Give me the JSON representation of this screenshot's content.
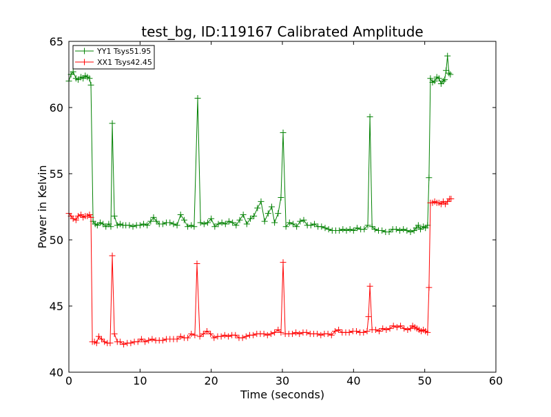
{
  "chart_data": {
    "type": "line",
    "title": "test_bg, ID:119167 Calibrated Amplitude",
    "xlabel": "Time (seconds)",
    "ylabel": "Power in Kelvin",
    "xlim": [
      0,
      60
    ],
    "ylim": [
      40,
      65
    ],
    "xticks": [
      0,
      10,
      20,
      30,
      40,
      50,
      60
    ],
    "yticks": [
      40,
      45,
      50,
      55,
      60,
      65
    ],
    "grid": false,
    "legend_position": "top-left",
    "marker": "plus",
    "series": [
      {
        "name": "YY1 Tsys51.95",
        "color": "#008000",
        "points": [
          [
            0.0,
            62.0
          ],
          [
            0.3,
            62.5
          ],
          [
            0.6,
            62.7
          ],
          [
            1.0,
            62.2
          ],
          [
            1.3,
            62.1
          ],
          [
            1.7,
            62.3
          ],
          [
            2.0,
            62.2
          ],
          [
            2.3,
            62.4
          ],
          [
            2.6,
            62.3
          ],
          [
            2.9,
            62.2
          ],
          [
            3.1,
            61.7
          ],
          [
            3.4,
            51.4
          ],
          [
            3.7,
            51.2
          ],
          [
            4.0,
            51.1
          ],
          [
            4.4,
            51.3
          ],
          [
            4.8,
            51.2
          ],
          [
            5.2,
            51.0
          ],
          [
            5.6,
            51.2
          ],
          [
            5.9,
            51.0
          ],
          [
            6.1,
            58.8
          ],
          [
            6.4,
            51.8
          ],
          [
            6.8,
            51.1
          ],
          [
            7.2,
            51.2
          ],
          [
            7.6,
            51.1
          ],
          [
            8.0,
            51.1
          ],
          [
            8.5,
            51.1
          ],
          [
            9.0,
            51.0
          ],
          [
            9.5,
            51.1
          ],
          [
            10.0,
            51.1
          ],
          [
            10.5,
            51.2
          ],
          [
            11.0,
            51.1
          ],
          [
            11.5,
            51.4
          ],
          [
            11.9,
            51.7
          ],
          [
            12.3,
            51.4
          ],
          [
            12.7,
            51.2
          ],
          [
            13.2,
            51.2
          ],
          [
            13.7,
            51.3
          ],
          [
            14.2,
            51.3
          ],
          [
            14.7,
            51.2
          ],
          [
            15.2,
            51.1
          ],
          [
            15.7,
            51.9
          ],
          [
            16.2,
            51.5
          ],
          [
            16.7,
            51.0
          ],
          [
            17.2,
            51.1
          ],
          [
            17.6,
            51.0
          ],
          [
            18.1,
            60.7
          ],
          [
            18.5,
            51.3
          ],
          [
            19.0,
            51.2
          ],
          [
            19.5,
            51.3
          ],
          [
            20.0,
            51.6
          ],
          [
            20.5,
            51.0
          ],
          [
            21.0,
            51.2
          ],
          [
            21.5,
            51.3
          ],
          [
            22.0,
            51.2
          ],
          [
            22.5,
            51.4
          ],
          [
            23.0,
            51.3
          ],
          [
            23.5,
            51.1
          ],
          [
            24.0,
            51.5
          ],
          [
            24.5,
            51.9
          ],
          [
            25.0,
            51.2
          ],
          [
            25.5,
            51.6
          ],
          [
            26.0,
            51.8
          ],
          [
            26.5,
            52.4
          ],
          [
            27.0,
            52.9
          ],
          [
            27.5,
            51.4
          ],
          [
            28.0,
            52.0
          ],
          [
            28.5,
            52.5
          ],
          [
            28.9,
            51.3
          ],
          [
            29.4,
            52.0
          ],
          [
            29.8,
            53.2
          ],
          [
            30.1,
            58.1
          ],
          [
            30.5,
            51.0
          ],
          [
            31.0,
            51.3
          ],
          [
            31.5,
            51.2
          ],
          [
            32.0,
            51.0
          ],
          [
            32.5,
            51.4
          ],
          [
            33.0,
            51.5
          ],
          [
            33.5,
            51.1
          ],
          [
            34.0,
            51.1
          ],
          [
            34.5,
            51.2
          ],
          [
            35.0,
            51.0
          ],
          [
            35.5,
            51.0
          ],
          [
            36.0,
            50.9
          ],
          [
            36.5,
            50.8
          ],
          [
            37.0,
            50.7
          ],
          [
            37.5,
            50.7
          ],
          [
            38.0,
            50.7
          ],
          [
            38.5,
            50.8
          ],
          [
            39.0,
            50.7
          ],
          [
            39.5,
            50.8
          ],
          [
            40.0,
            50.7
          ],
          [
            40.5,
            50.9
          ],
          [
            41.0,
            50.8
          ],
          [
            41.5,
            50.8
          ],
          [
            42.0,
            51.1
          ],
          [
            42.3,
            59.3
          ],
          [
            42.6,
            51.0
          ],
          [
            43.0,
            50.8
          ],
          [
            43.5,
            50.7
          ],
          [
            44.0,
            50.7
          ],
          [
            44.5,
            50.6
          ],
          [
            45.0,
            50.6
          ],
          [
            45.5,
            50.8
          ],
          [
            46.0,
            50.8
          ],
          [
            46.5,
            50.7
          ],
          [
            47.0,
            50.8
          ],
          [
            47.5,
            50.7
          ],
          [
            48.0,
            50.6
          ],
          [
            48.5,
            50.7
          ],
          [
            48.8,
            50.9
          ],
          [
            49.1,
            51.1
          ],
          [
            49.4,
            50.8
          ],
          [
            49.8,
            51.0
          ],
          [
            50.1,
            50.9
          ],
          [
            50.4,
            51.1
          ],
          [
            50.6,
            54.7
          ],
          [
            50.8,
            62.2
          ],
          [
            51.1,
            61.9
          ],
          [
            51.4,
            62.0
          ],
          [
            51.7,
            62.3
          ],
          [
            52.0,
            62.2
          ],
          [
            52.3,
            61.8
          ],
          [
            52.6,
            62.0
          ],
          [
            52.8,
            62.1
          ],
          [
            53.0,
            62.8
          ],
          [
            53.2,
            63.9
          ],
          [
            53.4,
            62.6
          ],
          [
            53.6,
            62.5
          ]
        ]
      },
      {
        "name": "XX1 Tsys42.45",
        "color": "#ff0000",
        "points": [
          [
            0.0,
            52.0
          ],
          [
            0.3,
            51.8
          ],
          [
            0.6,
            51.6
          ],
          [
            1.0,
            51.5
          ],
          [
            1.3,
            51.8
          ],
          [
            1.7,
            51.9
          ],
          [
            2.0,
            51.7
          ],
          [
            2.3,
            51.8
          ],
          [
            2.6,
            51.8
          ],
          [
            2.9,
            51.9
          ],
          [
            3.1,
            51.7
          ],
          [
            3.3,
            42.3
          ],
          [
            3.6,
            42.3
          ],
          [
            3.9,
            42.2
          ],
          [
            4.2,
            42.7
          ],
          [
            4.6,
            42.5
          ],
          [
            5.0,
            42.3
          ],
          [
            5.4,
            42.2
          ],
          [
            5.8,
            42.2
          ],
          [
            6.1,
            48.8
          ],
          [
            6.4,
            42.9
          ],
          [
            6.8,
            42.3
          ],
          [
            7.2,
            42.3
          ],
          [
            7.7,
            42.1
          ],
          [
            8.2,
            42.2
          ],
          [
            8.7,
            42.2
          ],
          [
            9.2,
            42.3
          ],
          [
            9.7,
            42.3
          ],
          [
            10.2,
            42.5
          ],
          [
            10.7,
            42.3
          ],
          [
            11.2,
            42.4
          ],
          [
            11.7,
            42.5
          ],
          [
            12.2,
            42.4
          ],
          [
            12.7,
            42.4
          ],
          [
            13.2,
            42.4
          ],
          [
            13.7,
            42.5
          ],
          [
            14.2,
            42.5
          ],
          [
            14.7,
            42.5
          ],
          [
            15.2,
            42.5
          ],
          [
            15.7,
            42.7
          ],
          [
            16.2,
            42.6
          ],
          [
            16.7,
            42.6
          ],
          [
            17.2,
            42.9
          ],
          [
            17.7,
            42.8
          ],
          [
            18.0,
            48.2
          ],
          [
            18.4,
            42.7
          ],
          [
            18.9,
            42.9
          ],
          [
            19.4,
            43.1
          ],
          [
            19.9,
            42.9
          ],
          [
            20.4,
            42.6
          ],
          [
            20.9,
            42.7
          ],
          [
            21.4,
            42.7
          ],
          [
            21.9,
            42.8
          ],
          [
            22.4,
            42.7
          ],
          [
            22.9,
            42.8
          ],
          [
            23.4,
            42.8
          ],
          [
            23.9,
            42.6
          ],
          [
            24.4,
            42.6
          ],
          [
            24.9,
            42.7
          ],
          [
            25.4,
            42.8
          ],
          [
            25.9,
            42.8
          ],
          [
            26.4,
            42.9
          ],
          [
            26.9,
            42.9
          ],
          [
            27.4,
            42.9
          ],
          [
            27.9,
            42.8
          ],
          [
            28.4,
            42.9
          ],
          [
            28.9,
            43.0
          ],
          [
            29.4,
            43.2
          ],
          [
            29.8,
            43.0
          ],
          [
            30.1,
            48.3
          ],
          [
            30.4,
            42.9
          ],
          [
            30.9,
            42.9
          ],
          [
            31.4,
            42.9
          ],
          [
            31.9,
            43.0
          ],
          [
            32.4,
            42.9
          ],
          [
            32.9,
            43.0
          ],
          [
            33.4,
            43.0
          ],
          [
            33.9,
            42.9
          ],
          [
            34.4,
            42.9
          ],
          [
            34.9,
            42.9
          ],
          [
            35.4,
            42.8
          ],
          [
            35.9,
            42.9
          ],
          [
            36.4,
            42.9
          ],
          [
            36.9,
            42.8
          ],
          [
            37.4,
            43.1
          ],
          [
            37.9,
            43.2
          ],
          [
            38.4,
            43.0
          ],
          [
            38.9,
            43.0
          ],
          [
            39.4,
            43.0
          ],
          [
            39.9,
            43.1
          ],
          [
            40.4,
            43.1
          ],
          [
            40.9,
            43.0
          ],
          [
            41.4,
            43.0
          ],
          [
            41.9,
            43.1
          ],
          [
            42.1,
            44.2
          ],
          [
            42.3,
            46.5
          ],
          [
            42.6,
            43.2
          ],
          [
            43.1,
            43.2
          ],
          [
            43.6,
            43.1
          ],
          [
            44.1,
            43.3
          ],
          [
            44.6,
            43.2
          ],
          [
            45.1,
            43.3
          ],
          [
            45.6,
            43.5
          ],
          [
            46.1,
            43.4
          ],
          [
            46.6,
            43.5
          ],
          [
            47.1,
            43.3
          ],
          [
            47.6,
            43.2
          ],
          [
            48.0,
            43.3
          ],
          [
            48.3,
            43.5
          ],
          [
            48.6,
            43.4
          ],
          [
            48.9,
            43.3
          ],
          [
            49.2,
            43.2
          ],
          [
            49.5,
            43.1
          ],
          [
            49.8,
            43.2
          ],
          [
            50.1,
            43.1
          ],
          [
            50.4,
            43.0
          ],
          [
            50.6,
            46.4
          ],
          [
            50.8,
            52.8
          ],
          [
            51.1,
            52.8
          ],
          [
            51.4,
            52.9
          ],
          [
            51.7,
            52.8
          ],
          [
            52.0,
            52.8
          ],
          [
            52.3,
            52.7
          ],
          [
            52.6,
            52.9
          ],
          [
            52.9,
            52.7
          ],
          [
            53.2,
            52.9
          ],
          [
            53.5,
            53.1
          ],
          [
            53.7,
            53.1
          ]
        ]
      }
    ]
  }
}
